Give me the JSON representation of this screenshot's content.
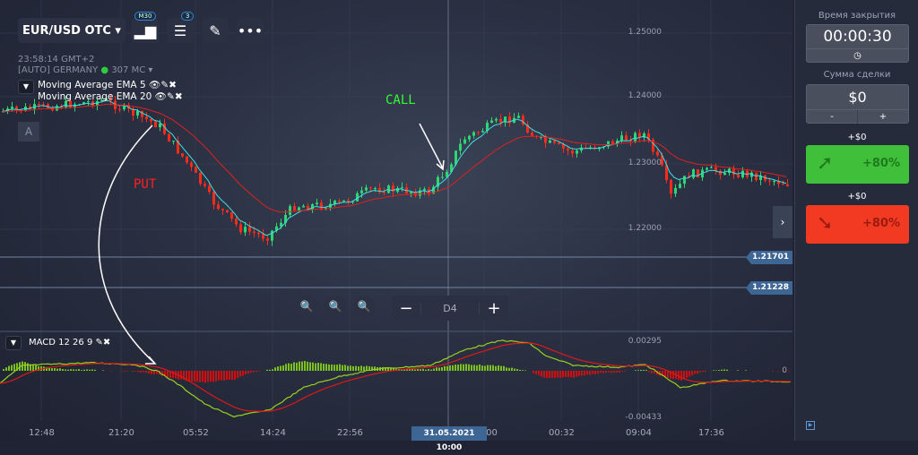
{
  "toolbar": {
    "pair": "EUR/USD OTC",
    "timeframe_badge": "M30",
    "indicator_count": "3"
  },
  "info": {
    "time": "23:58:14 GMT+2",
    "server": "[AUTO] GERMANY",
    "ping": "307 MC"
  },
  "indicators": [
    {
      "label": "Moving Average EMA 5"
    },
    {
      "label": "Moving Average EMA 20"
    }
  ],
  "annotations": {
    "put": "PUT",
    "call": "CALL",
    "marker": "A"
  },
  "price_axis": [
    "1.25000",
    "1.24000",
    "1.23000",
    "1.22000"
  ],
  "price_tags": [
    "1.21701",
    "1.21228"
  ],
  "zoom": {
    "period": "D4"
  },
  "macd": {
    "label": "MACD 12 26 9",
    "top": "0.00295",
    "zero": "0",
    "bottom": "-0.00433"
  },
  "time_axis": [
    "12:48",
    "21:20",
    "05:52",
    "14:24",
    "22:56",
    "16:00",
    "00:32",
    "09:04",
    "17:36"
  ],
  "time_cursor": "31.05.2021 10:00",
  "panel": {
    "close_time_label": "Время закрытия",
    "close_time": "00:00:30",
    "amount_label": "Сумма сделки",
    "amount": "$0",
    "minus": "-",
    "plus": "+",
    "call_profit": "+$0",
    "call_pct": "+80%",
    "put_profit": "+$0",
    "put_pct": "+80%"
  },
  "colors": {
    "up": "#2ed573",
    "down": "#ff2a1a",
    "call": "#3fbf3a",
    "put": "#f23a22",
    "accent": "#3e6694"
  }
}
